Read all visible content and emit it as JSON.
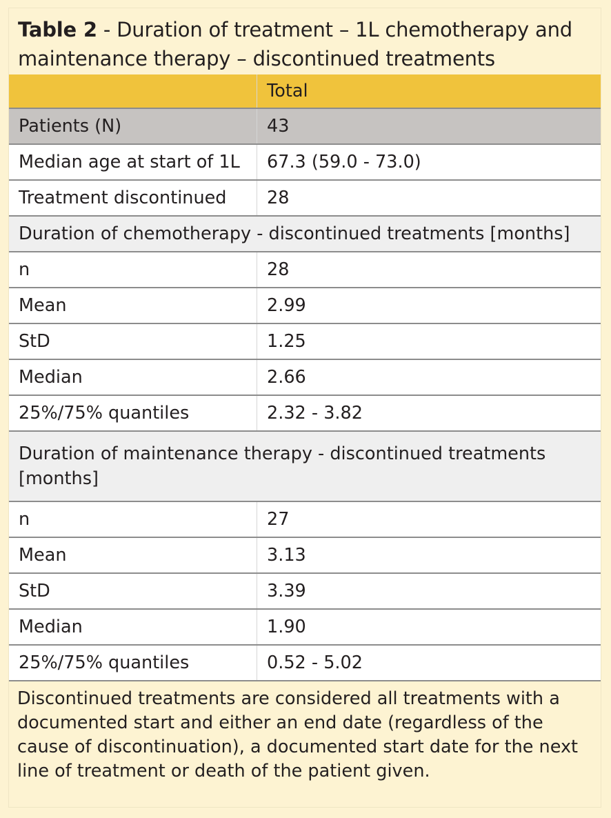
{
  "title": {
    "label": "Table 2",
    "separator": " - ",
    "text": "Duration of treatment – 1L chemotherapy and maintenance therapy – discontinued treatments"
  },
  "table": {
    "header": [
      "",
      "Total"
    ],
    "rows": [
      {
        "type": "patients",
        "label": "Patients (N)",
        "value": "43"
      },
      {
        "type": "data",
        "label": "Median age at start of 1L",
        "value": "67.3 (59.0 - 73.0)"
      },
      {
        "type": "data",
        "label": "Treatment discontinued",
        "value": "28"
      },
      {
        "type": "section",
        "label": "Duration of chemotherapy - discontinued treatments [months]"
      },
      {
        "type": "data",
        "label": "n",
        "value": "28"
      },
      {
        "type": "data",
        "label": "Mean",
        "value": "2.99"
      },
      {
        "type": "data",
        "label": "StD",
        "value": "1.25"
      },
      {
        "type": "data",
        "label": "Median",
        "value": "2.66"
      },
      {
        "type": "data",
        "label": "25%/75% quantiles",
        "value": "2.32 - 3.82"
      },
      {
        "type": "section-tall",
        "label": "Duration of maintenance therapy - discontinued treatments [months]"
      },
      {
        "type": "data",
        "label": "n",
        "value": "27"
      },
      {
        "type": "data",
        "label": "Mean",
        "value": "3.13"
      },
      {
        "type": "data",
        "label": "StD",
        "value": "3.39"
      },
      {
        "type": "data",
        "label": "Median",
        "value": "1.90"
      },
      {
        "type": "data",
        "label": "25%/75% quantiles",
        "value": "0.52 - 5.02"
      }
    ]
  },
  "footnote": "Discontinued treatments are considered all treatments with a documented start and either an end date (regardless of the cause of discontinuation), a documented start date for the next line of treatment or death of the patient given.",
  "colors": {
    "background": "#fdf3d2",
    "header": "#f0c33c",
    "patients_row": "#c6c3c1",
    "section_row": "#efefef"
  }
}
